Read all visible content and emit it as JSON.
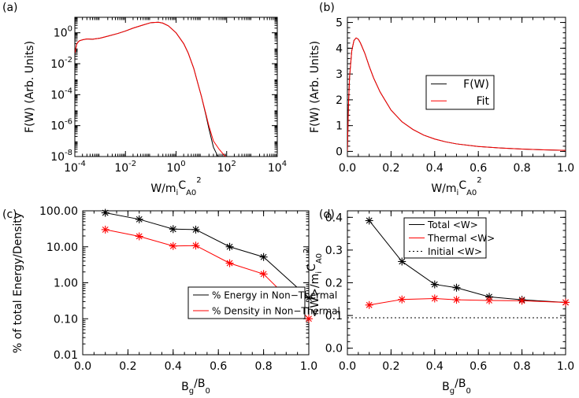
{
  "chart_data": [
    {
      "panel_label": "(a)",
      "type": "line",
      "x_scale": "log",
      "y_scale": "log",
      "xlim": [
        0.0001,
        10000
      ],
      "ylim": [
        1e-08,
        10
      ],
      "xticks": [
        0.0001,
        0.01,
        1,
        100,
        10000
      ],
      "xtick_labels": [
        "10",
        "10",
        "10",
        "10",
        "10"
      ],
      "xtick_exps": [
        "-4",
        "-2",
        "0",
        "2",
        "4"
      ],
      "yticks": [
        1e-08,
        1e-06,
        0.0001,
        0.01,
        1
      ],
      "ytick_labels": [
        "10",
        "10",
        "10",
        "10",
        "10"
      ],
      "ytick_exps": [
        "-8",
        "-6",
        "-4",
        "-2",
        "0"
      ],
      "xlabel": {
        "main": "W/m",
        "sub1": "i",
        "mid": "C",
        "sub2": "A0",
        "sup": "2"
      },
      "ylabel": "F(W)  (Arb. Units)",
      "series": [
        {
          "color": "#000000",
          "x": [
            0.0001,
            0.00012,
            0.00015,
            0.0002,
            0.0003,
            0.0005,
            0.001,
            0.002,
            0.005,
            0.01,
            0.02,
            0.05,
            0.1,
            0.2,
            0.3,
            0.5,
            1,
            2,
            3,
            5,
            8,
            10,
            15,
            20,
            30,
            40,
            50
          ],
          "y": [
            0.05,
            0.2,
            0.3,
            0.35,
            0.4,
            0.38,
            0.45,
            0.6,
            0.9,
            1.3,
            2,
            3.2,
            4.5,
            4.8,
            4.2,
            2.8,
            1.0,
            0.2,
            0.05,
            0.005,
            0.0003,
            8e-05,
            5e-06,
            6e-07,
            4e-08,
            1.5e-08,
            8e-09
          ]
        },
        {
          "color": "#ff0000",
          "x": [
            0.0001,
            0.00012,
            0.00015,
            0.0002,
            0.0003,
            0.0005,
            0.001,
            0.002,
            0.005,
            0.01,
            0.02,
            0.05,
            0.1,
            0.2,
            0.3,
            0.5,
            1,
            2,
            3,
            5,
            8,
            10,
            15,
            20,
            30,
            50,
            80,
            100
          ],
          "y": [
            0.05,
            0.2,
            0.3,
            0.35,
            0.4,
            0.38,
            0.45,
            0.6,
            0.9,
            1.3,
            2,
            3.2,
            4.5,
            4.8,
            4.2,
            2.8,
            1.0,
            0.2,
            0.05,
            0.005,
            0.0003,
            8e-05,
            6e-06,
            9e-07,
            1e-07,
            3e-08,
            1.2e-08,
            8e-09
          ]
        }
      ]
    },
    {
      "panel_label": "(b)",
      "type": "line",
      "x_scale": "linear",
      "y_scale": "linear",
      "xlim": [
        0,
        1
      ],
      "ylim": [
        -0.2,
        5.2
      ],
      "xticks": [
        0,
        0.2,
        0.4,
        0.6,
        0.8,
        1.0
      ],
      "xtick_labels": [
        "0.0",
        "0.2",
        "0.4",
        "0.6",
        "0.8",
        "1.0"
      ],
      "yticks": [
        0,
        1,
        2,
        3,
        4,
        5
      ],
      "ytick_labels": [
        "0",
        "1",
        "2",
        "3",
        "4",
        "5"
      ],
      "xlabel": {
        "main": "W/m",
        "sub1": "i",
        "mid": "C",
        "sub2": "A0",
        "sup": "2"
      },
      "ylabel": "F(W)  (Arb. Units)",
      "legend": {
        "placement": "center-right",
        "entries": [
          {
            "label": "F(W)",
            "color": "#000000"
          },
          {
            "label": "Fit",
            "color": "#ff0000"
          }
        ]
      },
      "series": [
        {
          "color": "#000000",
          "x": [
            0,
            0.005,
            0.01,
            0.02,
            0.03,
            0.04,
            0.05,
            0.06,
            0.08,
            0.1,
            0.12,
            0.15,
            0.2,
            0.25,
            0.3,
            0.35,
            0.4,
            0.45,
            0.5,
            0.6,
            0.7,
            0.8,
            0.9,
            1.0
          ],
          "y": [
            0,
            1.8,
            2.9,
            3.9,
            4.3,
            4.4,
            4.35,
            4.2,
            3.8,
            3.3,
            2.85,
            2.3,
            1.6,
            1.15,
            0.85,
            0.63,
            0.48,
            0.37,
            0.29,
            0.19,
            0.13,
            0.09,
            0.06,
            0.04
          ]
        },
        {
          "color": "#ff0000",
          "x": [
            0,
            0.005,
            0.01,
            0.02,
            0.03,
            0.04,
            0.05,
            0.06,
            0.08,
            0.1,
            0.12,
            0.15,
            0.2,
            0.25,
            0.3,
            0.35,
            0.4,
            0.45,
            0.5,
            0.6,
            0.7,
            0.8,
            0.9,
            1.0
          ],
          "y": [
            0,
            1.8,
            2.9,
            3.9,
            4.3,
            4.4,
            4.35,
            4.2,
            3.8,
            3.3,
            2.85,
            2.3,
            1.6,
            1.15,
            0.85,
            0.63,
            0.48,
            0.37,
            0.29,
            0.19,
            0.13,
            0.09,
            0.06,
            0.04
          ]
        }
      ]
    },
    {
      "panel_label": "(c)",
      "type": "line",
      "x_scale": "linear",
      "y_scale": "log",
      "xlim": [
        0,
        1
      ],
      "ylim": [
        0.01,
        100
      ],
      "xticks": [
        0,
        0.2,
        0.4,
        0.6,
        0.8,
        1.0
      ],
      "xtick_labels": [
        "0.0",
        "0.2",
        "0.4",
        "0.6",
        "0.8",
        "1.0"
      ],
      "yticks": [
        0.01,
        0.1,
        1,
        10,
        100
      ],
      "ytick_labels": [
        "0.01",
        "0.10",
        "1.00",
        "10.00",
        "100.00"
      ],
      "xlabel": {
        "main": "B",
        "sub1": "g",
        "mid": "/B",
        "sub2": "0"
      },
      "ylabel": "% of total Energy/Density",
      "legend": {
        "placement": "center-right",
        "entries": [
          {
            "label": "% Energy in Non−Thermal",
            "color": "#000000"
          },
          {
            "label": "% Density in Non−Thermal",
            "color": "#ff0000"
          }
        ]
      },
      "series": [
        {
          "color": "#000000",
          "x": [
            0.1,
            0.25,
            0.4,
            0.5,
            0.65,
            0.8,
            1.0
          ],
          "y": [
            88,
            58,
            31,
            30,
            10,
            5.2,
            0.38
          ]
        },
        {
          "color": "#ff0000",
          "x": [
            0.1,
            0.25,
            0.4,
            0.5,
            0.65,
            0.8,
            1.0
          ],
          "y": [
            30,
            19.5,
            10.5,
            10.8,
            3.5,
            1.75,
            0.1
          ]
        }
      ]
    },
    {
      "panel_label": "(d)",
      "type": "line",
      "x_scale": "linear",
      "y_scale": "linear",
      "xlim": [
        0,
        1
      ],
      "ylim": [
        -0.02,
        0.42
      ],
      "xticks": [
        0,
        0.2,
        0.4,
        0.6,
        0.8,
        1.0
      ],
      "xtick_labels": [
        "0.0",
        "0.2",
        "0.4",
        "0.6",
        "0.8",
        "1.0"
      ],
      "yticks": [
        0,
        0.1,
        0.2,
        0.3,
        0.4
      ],
      "ytick_labels": [
        "0.0",
        "0.1",
        "0.2",
        "0.3",
        "0.4"
      ],
      "xlabel": {
        "main": "B",
        "sub1": "g",
        "mid": "/B",
        "sub2": "0"
      },
      "ylabel": {
        "main": "<W>/m",
        "sub1": "i",
        "mid": "C",
        "sub2": "A0",
        "sup": "2"
      },
      "legend": {
        "placement": "top-right",
        "entries": [
          {
            "label": "Total  <W>",
            "color": "#000000"
          },
          {
            "label": "Thermal  <W>",
            "color": "#ff0000"
          },
          {
            "label": "Initial  <W>",
            "color": "#000000",
            "dash": "dotted"
          }
        ]
      },
      "series": [
        {
          "color": "#000000",
          "x": [
            0.1,
            0.25,
            0.4,
            0.5,
            0.65,
            0.8,
            1.0
          ],
          "y": [
            0.39,
            0.265,
            0.195,
            0.185,
            0.157,
            0.148,
            0.14
          ]
        },
        {
          "color": "#ff0000",
          "x": [
            0.1,
            0.25,
            0.4,
            0.5,
            0.65,
            0.8,
            1.0
          ],
          "y": [
            0.132,
            0.149,
            0.152,
            0.148,
            0.146,
            0.145,
            0.14
          ]
        },
        {
          "color": "#000000",
          "dash": "dotted",
          "x": [
            0,
            1.0
          ],
          "y": [
            0.093,
            0.093
          ]
        }
      ]
    }
  ]
}
